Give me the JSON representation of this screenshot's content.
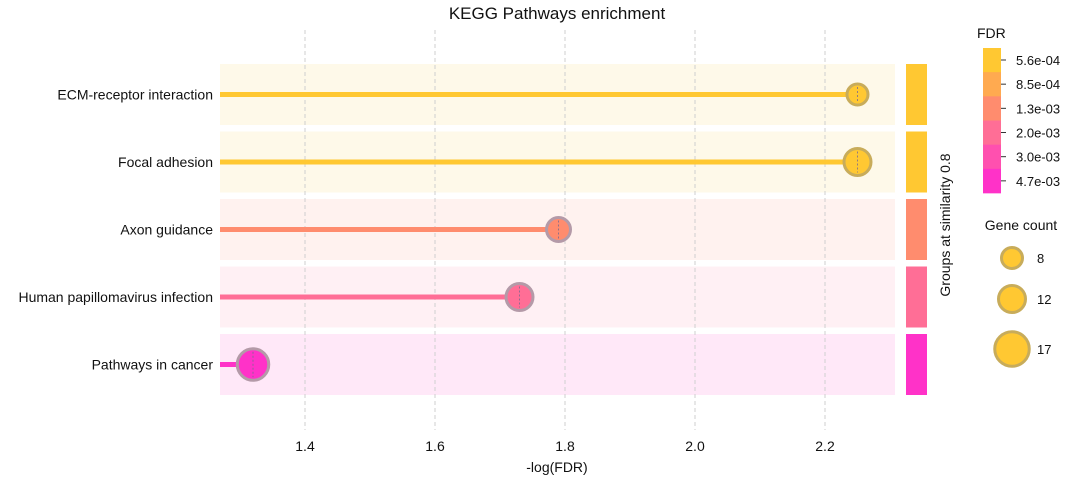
{
  "chart_data": {
    "type": "lollipop",
    "title": "KEGG Pathways enrichment",
    "xlabel": "-log(FDR)",
    "ylabel": "",
    "xlim": [
      1.27,
      2.31
    ],
    "xticks": [
      1.4,
      1.6,
      1.8,
      2.0,
      2.2
    ],
    "xtick_labels": [
      "1.4",
      "1.6",
      "1.8",
      "2.0",
      "2.2"
    ],
    "grid": {
      "x": true,
      "style": "dashed"
    },
    "categories": [
      "ECM-receptor interaction",
      "Focal adhesion",
      "Axon guidance",
      "Human papillomavirus infection",
      "Pathways in cancer"
    ],
    "series": [
      {
        "values": [
          2.25,
          2.25,
          1.79,
          1.73,
          1.32
        ],
        "gene_counts": [
          8,
          12,
          10,
          12,
          15
        ],
        "colors": [
          "#FFC832",
          "#FFC832",
          "#FF8C6E",
          "#FF6E96",
          "#FF32C8"
        ],
        "band_colors": [
          "#FEF9E9",
          "#FEF9E9",
          "#FFF2EF",
          "#FFF0F4",
          "#FFE8F8"
        ]
      }
    ],
    "group_bar": {
      "label": "Groups at similarity 0.8",
      "colors": [
        "#FFC832",
        "#FFC832",
        "#FF8C6E",
        "#FF6E96",
        "#FF32C8"
      ]
    },
    "fdr_legend": {
      "title": "FDR",
      "labels": [
        "5.6e-04",
        "8.5e-04",
        "1.3e-03",
        "2.0e-03",
        "3.0e-03",
        "4.7e-03"
      ],
      "colors": [
        "#FFC832",
        "#FFAA50",
        "#FF8C6E",
        "#FF6E96",
        "#FF50AF",
        "#FF32C8"
      ]
    },
    "size_legend": {
      "title": "Gene count",
      "labels": [
        "8",
        "12",
        "17"
      ],
      "values": [
        8,
        12,
        17
      ],
      "color": "#FFC832"
    }
  }
}
